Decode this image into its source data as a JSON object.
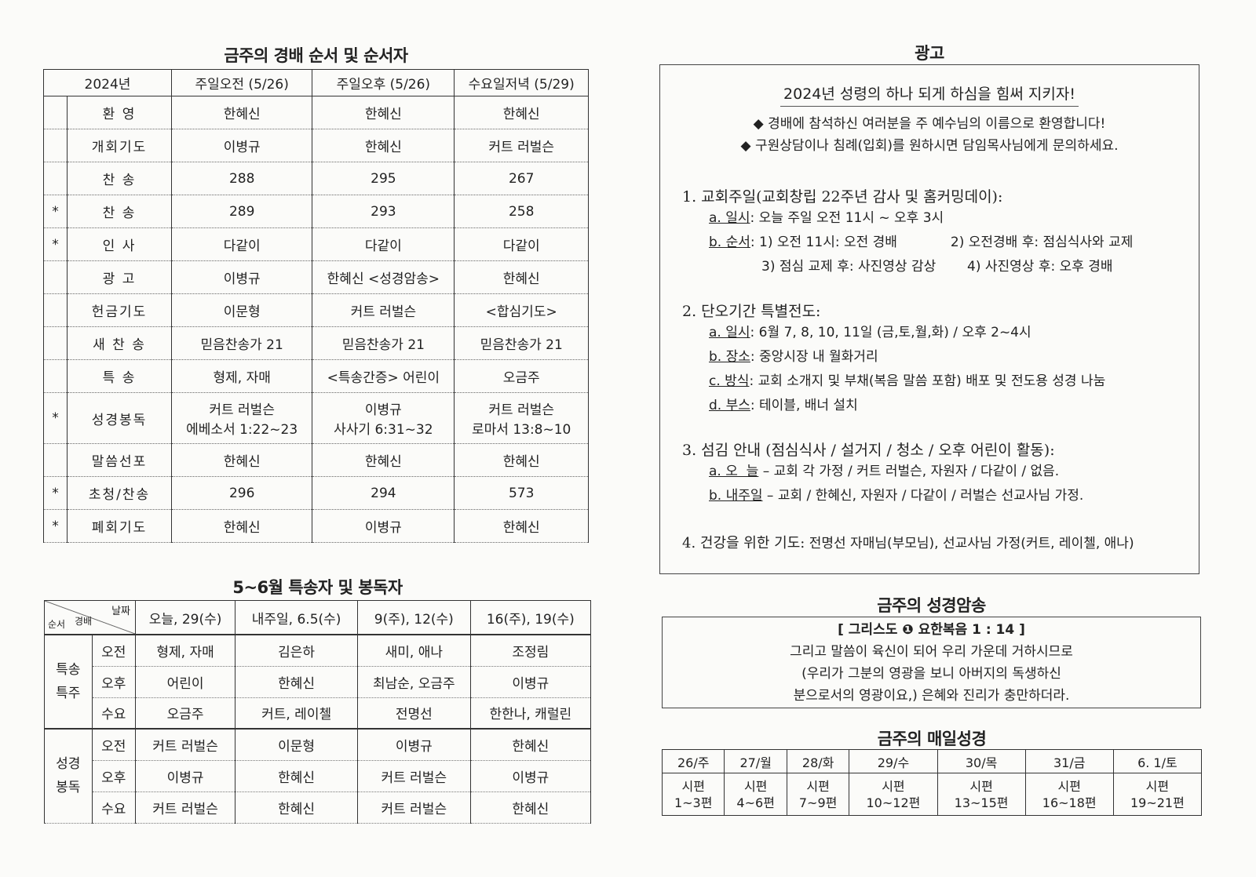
{
  "worship": {
    "title": "금주의 경배 순서 및 순서자",
    "headers": [
      "2024년",
      "주일오전 (5/26)",
      "주일오후 (5/26)",
      "수요일저녁 (5/29)"
    ],
    "rows": [
      {
        "star": "",
        "label": "환 영",
        "am": "한혜신",
        "pm": "한혜신",
        "wed": "한혜신"
      },
      {
        "star": "",
        "label": "개회기도",
        "am": "이병규",
        "pm": "한혜신",
        "wed": "커트 러벌슨"
      },
      {
        "star": "",
        "label": "찬 송",
        "am": "288",
        "pm": "295",
        "wed": "267"
      },
      {
        "star": "*",
        "label": "찬 송",
        "am": "289",
        "pm": "293",
        "wed": "258"
      },
      {
        "star": "*",
        "label": "인 사",
        "am": "다같이",
        "pm": "다같이",
        "wed": "다같이"
      },
      {
        "star": "",
        "label": "광 고",
        "am": "이병규",
        "pm": "한혜신 <성경암송>",
        "wed": "한혜신"
      },
      {
        "star": "",
        "label": "헌금기도",
        "am": "이문형",
        "pm": "커트 러벌슨",
        "wed": "<합심기도>"
      },
      {
        "star": "",
        "label": "새 찬 송",
        "am": "믿음찬송가 21",
        "pm": "믿음찬송가 21",
        "wed": "믿음찬송가 21"
      },
      {
        "star": "",
        "label": "특 송",
        "am": "형제, 자매",
        "pm": "<특송간증> 어린이",
        "wed": "오금주"
      },
      {
        "star": "*",
        "label": "성경봉독",
        "am": "커트 러벌슨",
        "am2": "에베소서 1:22~23",
        "pm": "이병규",
        "pm2": "사사기 6:31~32",
        "wed": "커트 러벌슨",
        "wed2": "로마서 13:8~10"
      },
      {
        "star": "",
        "label": "말씀선포",
        "am": "한혜신",
        "pm": "한혜신",
        "wed": "한혜신"
      },
      {
        "star": "*",
        "label": "초청/찬송",
        "am": "296",
        "pm": "294",
        "wed": "573"
      },
      {
        "star": "*",
        "label": "폐회기도",
        "am": "한혜신",
        "pm": "이병규",
        "wed": "한혜신"
      }
    ]
  },
  "schedule": {
    "title": "5~6월 특송자 및 봉독자",
    "corner": {
      "date": "날짜",
      "order": "순서",
      "service": "경배"
    },
    "headers": [
      "오늘, 29(수)",
      "내주일, 6.5(수)",
      "9(주), 12(수)",
      "16(주), 19(수)"
    ],
    "groups": [
      {
        "name": "특송\n특주",
        "rows": [
          {
            "time": "오전",
            "cells": [
              "형제, 자매",
              "김은하",
              "새미, 애나",
              "조정림"
            ]
          },
          {
            "time": "오후",
            "cells": [
              "어린이",
              "한혜신",
              "최남순, 오금주",
              "이병규"
            ]
          },
          {
            "time": "수요",
            "cells": [
              "오금주",
              "커트, 레이첼",
              "전명선",
              "한한나, 캐럴린"
            ]
          }
        ]
      },
      {
        "name": "성경\n봉독",
        "rows": [
          {
            "time": "오전",
            "cells": [
              "커트 러벌슨",
              "이문형",
              "이병규",
              "한혜신"
            ]
          },
          {
            "time": "오후",
            "cells": [
              "이병규",
              "한혜신",
              "커트 러벌슨",
              "이병규"
            ]
          },
          {
            "time": "수요",
            "cells": [
              "커트 러벌슨",
              "한혜신",
              "커트 러벌슨",
              "한혜신"
            ]
          }
        ]
      }
    ]
  },
  "ads": {
    "title": "광고",
    "slogan": "2024년 성령의 하나 되게 하심을 힘써 지키자!",
    "bullets": [
      "경배에 참석하신 여러분을 주 예수님의 이름으로 환영합니다!",
      "구원상담이나 침례(입회)를 원하시면 담임목사님에게 문의하세요."
    ],
    "bullet_icon": "diamond",
    "s1": {
      "title": "1. 교회주일(교회창립 22주년 감사 및 홈커밍데이):",
      "a_label": "a. 일시",
      "a": ": 오늘 주일 오전 11시 ~ 오후 3시",
      "b_label": "b. 순서",
      "b1": ": 1) 오전 11시: 오전 경배",
      "b2": "2) 오전경배 후: 점심식사와 교제",
      "b3": "3) 점심 교제 후: 사진영상 감상",
      "b4": "4) 사진영상 후: 오후 경배"
    },
    "s2": {
      "title": "2. 단오기간 특별전도:",
      "a_label": "a. 일시",
      "a": ": 6월 7, 8, 10, 11일 (금,토,월,화) / 오후 2~4시",
      "b_label": "b. 장소",
      "b": ": 중앙시장 내 월화거리",
      "c_label": "c. 방식",
      "c": ": 교회 소개지 및 부채(복음 말씀 포함) 배포 및 전도용 성경 나눔",
      "d_label": "d. 부스",
      "d": ": 테이블, 배너 설치"
    },
    "s3": {
      "title": "3. 섬김 안내 (점심식사 / 설거지 / 청소 / 오후 어린이 활동):",
      "a_label": "a. 오  늘",
      "a": " – 교회 각 가정 / 커트 러벌슨, 자원자 / 다같이 / 없음.",
      "b_label": "b. 내주일",
      "b": " – 교회 / 한혜신, 자원자 / 다같이 / 러벌슨 선교사님 가정."
    },
    "s4": {
      "title": "4. 건강을 위한 기도:",
      "text": " 전명선 자매님(부모님), 선교사님 가정(커트, 레이첼, 애나)"
    }
  },
  "verse": {
    "title": "금주의 성경암송",
    "ref": "[ 그리스도 ❶ 요한복음 1 : 14 ]",
    "lines": [
      "그리고 말씀이 육신이 되어 우리 가운데 거하시므로",
      "(우리가 그분의 영광을 보니 아버지의 독생하신",
      "분으로서의 영광이요,) 은혜와 진리가 충만하더라."
    ]
  },
  "daily": {
    "title": "금주의 매일성경",
    "days": [
      "26/주",
      "27/월",
      "28/화",
      "29/수",
      "30/목",
      "31/금",
      "6. 1/토"
    ],
    "book": "시편",
    "ranges": [
      "1~3편",
      "4~6편",
      "7~9편",
      "10~12편",
      "13~15편",
      "16~18편",
      "19~21편"
    ]
  }
}
